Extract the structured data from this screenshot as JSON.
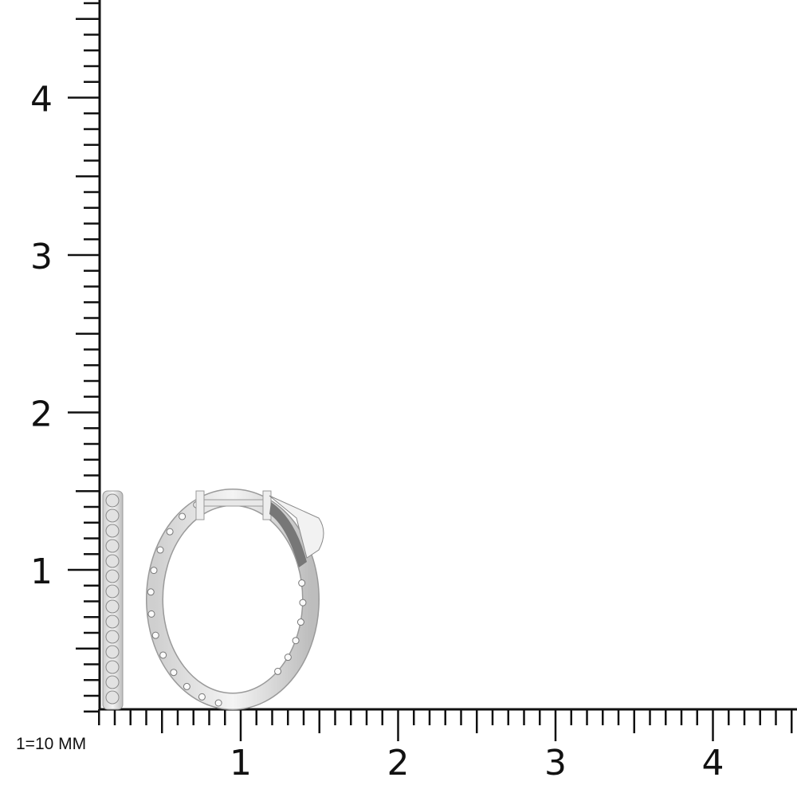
{
  "ruler": {
    "scale_label": "1=10 MM",
    "x_labels": [
      "1",
      "2",
      "3",
      "4"
    ],
    "y_labels": [
      "1",
      "2",
      "3",
      "4"
    ],
    "unit_value_mm": 10,
    "minor_step": 0.1,
    "half_step": 0.5,
    "line_color": "#111111"
  },
  "product": {
    "type": "inside-out diamond oval hoop earring",
    "metal_color": "#e6e6e6",
    "views": [
      "side-profile",
      "front"
    ]
  }
}
